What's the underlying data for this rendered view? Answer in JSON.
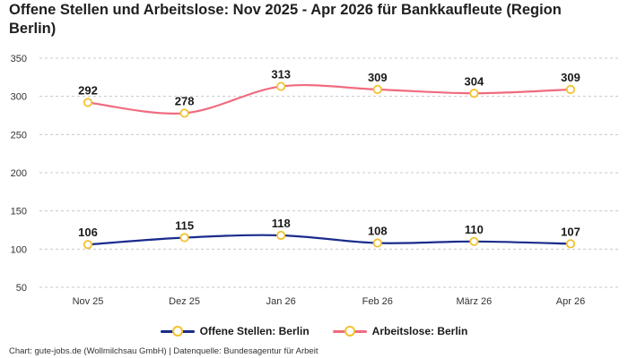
{
  "title": "Offene Stellen und Arbeitslose: Nov 2025 - Apr 2026 für Bankkaufleute (Region Berlin)",
  "footer": "Chart: gute-jobs.de (Wollmilchsau GmbH) | Datenquelle: Bundesagentur für Arbeit",
  "marker_color": "#f2c12e",
  "chart_data": {
    "type": "line",
    "categories": [
      "Nov 25",
      "Dez 25",
      "Jan 26",
      "Feb 26",
      "März 26",
      "Apr 26"
    ],
    "ylim": [
      50,
      350
    ],
    "yticks": [
      50,
      100,
      150,
      200,
      250,
      300,
      350
    ],
    "grid": true,
    "legend_position": "bottom-center",
    "series": [
      {
        "name": "Offene Stellen: Berlin",
        "color": "#1a2b8c",
        "values": [
          106,
          115,
          118,
          108,
          110,
          107
        ]
      },
      {
        "name": "Arbeitslose: Berlin",
        "color": "#f06b7f",
        "values": [
          292,
          278,
          313,
          309,
          304,
          309
        ]
      }
    ]
  }
}
